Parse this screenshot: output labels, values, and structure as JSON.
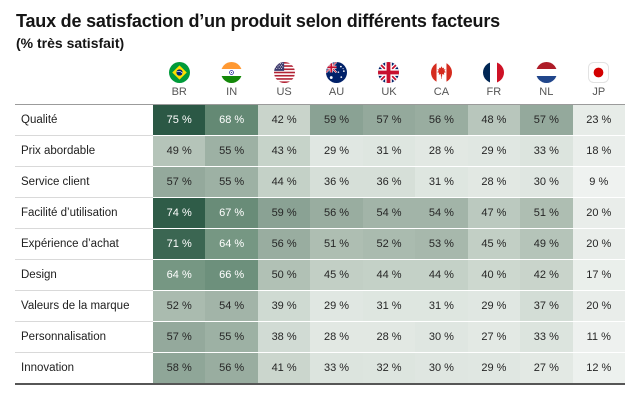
{
  "title": "Taux de satisfaction d’un produit selon différents facteurs",
  "subtitle": "(% très satisfait)",
  "chart_data": {
    "type": "heatmap",
    "title": "Taux de satisfaction d’un produit selon différents facteurs",
    "subtitle": "(% très satisfait)",
    "value_suffix": " %",
    "columns": [
      "BR",
      "IN",
      "US",
      "AU",
      "UK",
      "CA",
      "FR",
      "NL",
      "JP"
    ],
    "column_flag_icons": [
      "brazil-flag-icon",
      "india-flag-icon",
      "usa-flag-icon",
      "australia-flag-icon",
      "uk-flag-icon",
      "canada-flag-icon",
      "france-flag-icon",
      "netherlands-flag-icon",
      "japan-flag-icon"
    ],
    "rows": [
      "Qualité",
      "Prix abordable",
      "Service client",
      "Facilité d’utilisation",
      "Expérience d’achat",
      "Design",
      "Valeurs de la marque",
      "Personnalisation",
      "Innovation"
    ],
    "values": [
      [
        75,
        68,
        42,
        59,
        57,
        56,
        48,
        57,
        23
      ],
      [
        49,
        55,
        43,
        29,
        31,
        28,
        29,
        33,
        18
      ],
      [
        57,
        55,
        44,
        36,
        36,
        31,
        28,
        30,
        9
      ],
      [
        74,
        67,
        59,
        56,
        54,
        54,
        47,
        51,
        20
      ],
      [
        71,
        64,
        56,
        51,
        52,
        53,
        45,
        49,
        20
      ],
      [
        64,
        66,
        50,
        45,
        44,
        44,
        40,
        42,
        17
      ],
      [
        52,
        54,
        39,
        29,
        31,
        31,
        29,
        37,
        20
      ],
      [
        57,
        55,
        38,
        28,
        28,
        30,
        27,
        33,
        11
      ],
      [
        58,
        56,
        41,
        33,
        32,
        30,
        29,
        27,
        12
      ]
    ],
    "color_scale": {
      "anchors": [
        [
          0,
          "#f1f4f2"
        ],
        [
          9,
          "#eff2f0"
        ],
        [
          23,
          "#e7ece8"
        ],
        [
          33,
          "#dce4de"
        ],
        [
          45,
          "#c2cfc5"
        ],
        [
          53,
          "#a7b8ac"
        ],
        [
          59,
          "#8aa294"
        ],
        [
          63,
          "#7b9a87"
        ],
        [
          68,
          "#648974"
        ],
        [
          70,
          "#3f6a55"
        ],
        [
          75,
          "#2b5845"
        ],
        [
          100,
          "#1d4a37"
        ]
      ],
      "text_dark": "#262626",
      "text_light": "#ffffff",
      "white_text_threshold": 64
    },
    "legend": "none",
    "grid": "row separators only"
  }
}
